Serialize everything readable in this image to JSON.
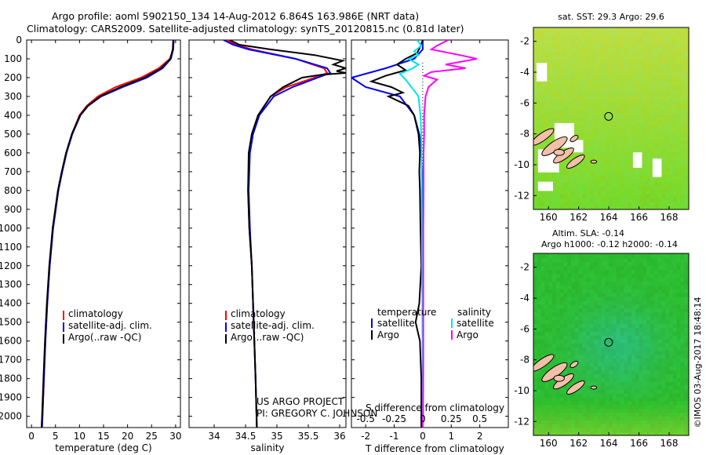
{
  "header": {
    "title_line1": "Argo profile: aoml 5902150_134 14-Aug-2012 6.864S 163.986E (NRT data)",
    "title_line2": "Climatology: CARS2009. Satellite-adjusted climatology: synTS_20120815.nc (0.81d later)"
  },
  "colors": {
    "climatology": "#ff0000",
    "satellite": "#0000ff",
    "argo": "#000000",
    "salinity_satellite": "#00e5ee",
    "salinity_argo": "#ff00ff"
  },
  "chart_data": [
    {
      "type": "line",
      "id": "temperature",
      "xlabel": "temperature (deg C)",
      "xlim": [
        -1,
        31
      ],
      "xticks": [
        0,
        5,
        10,
        15,
        20,
        25,
        30
      ],
      "ylim": [
        2060,
        0
      ],
      "yticks": [
        0,
        100,
        200,
        300,
        400,
        500,
        600,
        700,
        800,
        900,
        1000,
        1100,
        1200,
        1300,
        1400,
        1500,
        1600,
        1700,
        1800,
        1900,
        2000
      ],
      "legend": [
        "climatology",
        "satellite-adj. clim.",
        "Argo(..raw -QC)"
      ],
      "series": [
        {
          "name": "climatology",
          "depth": [
            0,
            50,
            100,
            150,
            200,
            250,
            300,
            350,
            400,
            500,
            600,
            700,
            800,
            1000,
            1200,
            1400,
            1600,
            1800,
            2000,
            2060
          ],
          "values": [
            29.6,
            29.5,
            28.8,
            26.5,
            22.8,
            17.5,
            13.8,
            11.5,
            10.0,
            8.4,
            7.3,
            6.4,
            5.6,
            4.5,
            3.8,
            3.3,
            2.9,
            2.6,
            2.3,
            2.2
          ]
        },
        {
          "name": "satellite-adj. clim.",
          "depth": [
            0,
            50,
            100,
            150,
            200,
            250,
            300,
            350,
            400,
            500,
            600,
            700,
            800,
            1000,
            1200,
            1400,
            1600,
            1800,
            2000,
            2060
          ],
          "values": [
            29.6,
            29.5,
            29.0,
            27.3,
            24.0,
            19.0,
            14.5,
            11.8,
            10.2,
            8.5,
            7.3,
            6.4,
            5.6,
            4.5,
            3.8,
            3.3,
            2.9,
            2.6,
            2.3,
            2.2
          ]
        },
        {
          "name": "Argo(..raw -QC)",
          "depth": [
            0,
            50,
            100,
            150,
            200,
            250,
            300,
            350,
            400,
            500,
            600,
            700,
            800,
            1000,
            1200,
            1400,
            1600,
            1800,
            2000,
            2060
          ],
          "values": [
            29.5,
            29.4,
            28.9,
            27.0,
            23.5,
            18.5,
            14.3,
            11.7,
            10.1,
            8.4,
            7.2,
            6.3,
            5.5,
            4.4,
            3.7,
            3.2,
            2.8,
            2.5,
            2.2,
            2.1
          ]
        }
      ]
    },
    {
      "type": "line",
      "id": "salinity",
      "xlabel": "salinity",
      "xlim": [
        33.6,
        36.1
      ],
      "xticks": [
        34,
        34.5,
        35,
        35.5,
        36
      ],
      "ylim": [
        2060,
        0
      ],
      "legend": [
        "climatology",
        "satellite-adj. clim.",
        "Argo(..raw -QC)"
      ],
      "series": [
        {
          "name": "climatology",
          "depth": [
            0,
            25,
            50,
            100,
            150,
            175,
            200,
            250,
            300,
            400,
            500,
            600,
            800,
            1000,
            1200,
            1500,
            1800,
            2060
          ],
          "values": [
            34.2,
            34.35,
            34.6,
            35.3,
            35.75,
            35.8,
            35.6,
            35.15,
            34.9,
            34.7,
            34.6,
            34.56,
            34.54,
            34.56,
            34.6,
            34.63,
            34.66,
            34.68
          ]
        },
        {
          "name": "satellite-adj. clim.",
          "depth": [
            0,
            25,
            50,
            100,
            150,
            175,
            200,
            250,
            300,
            400,
            500,
            600,
            800,
            1000,
            1200,
            1500,
            1800,
            2060
          ],
          "values": [
            34.15,
            34.3,
            34.55,
            35.3,
            35.8,
            35.85,
            35.65,
            35.25,
            34.95,
            34.72,
            34.62,
            34.57,
            34.55,
            34.57,
            34.6,
            34.63,
            34.66,
            34.68
          ]
        },
        {
          "name": "Argo(..raw -QC)",
          "depth": [
            0,
            25,
            50,
            80,
            110,
            130,
            150,
            165,
            175,
            185,
            200,
            250,
            300,
            400,
            500,
            600,
            800,
            1000,
            1200,
            1500,
            1800,
            2060
          ],
          "values": [
            34.25,
            34.4,
            34.9,
            35.6,
            36.05,
            35.9,
            36.1,
            35.95,
            36.1,
            35.7,
            35.4,
            35.1,
            34.9,
            34.7,
            34.6,
            34.55,
            34.54,
            34.56,
            34.6,
            34.63,
            34.66,
            34.68
          ]
        }
      ]
    },
    {
      "type": "line",
      "id": "difference",
      "xlabel_top": "S difference from climatology",
      "xlabel_bottom": "T difference from climatology",
      "xlim": [
        -2.5,
        3
      ],
      "xticks": [
        -2,
        -1,
        0,
        1,
        2
      ],
      "top_tick_labels": [
        "-0.5",
        "-0.25",
        "0",
        "0.25",
        "0.5"
      ],
      "top_tick_positions": [
        -2,
        -1,
        0,
        1,
        2
      ],
      "ylim": [
        2060,
        0
      ],
      "legend_left_title": "temperature",
      "legend_right_title": "salinity",
      "legend_labels": [
        "satellite",
        "Argo"
      ],
      "series": [
        {
          "name": "temperature satellite",
          "depth": [
            0,
            50,
            100,
            150,
            200,
            250,
            300,
            400,
            500,
            600,
            800,
            1000,
            1200,
            1400,
            1600,
            1800,
            2000,
            2060
          ],
          "values": [
            0,
            0,
            -0.3,
            -1.3,
            -2.5,
            -2.0,
            -0.8,
            -0.3,
            -0.12,
            -0.05,
            0,
            0,
            0,
            0,
            0,
            0,
            0,
            0
          ]
        },
        {
          "name": "temperature Argo",
          "depth": [
            0,
            40,
            70,
            100,
            130,
            160,
            190,
            220,
            250,
            280,
            300,
            350,
            400,
            500,
            600,
            700,
            800,
            1000,
            1200,
            1400,
            1500,
            1600,
            1800,
            2000,
            2060
          ],
          "values": [
            0,
            -0.1,
            -0.2,
            -0.6,
            -0.9,
            -0.6,
            -1.3,
            -1.8,
            -1.1,
            -0.7,
            -1.2,
            -0.5,
            -0.3,
            -0.15,
            -0.1,
            -0.12,
            -0.1,
            -0.08,
            -0.05,
            -0.12,
            -0.25,
            -0.1,
            -0.05,
            -0.05,
            -0.05
          ]
        },
        {
          "name": "salinity satellite",
          "depth": [
            0,
            30,
            60,
            80,
            100,
            130,
            150,
            180,
            210,
            250,
            300,
            400,
            500,
            700,
            1000,
            1300,
            1500,
            1700,
            2000,
            2060
          ],
          "values": [
            -0.2,
            -0.05,
            -0.3,
            -0.15,
            -0.5,
            -0.15,
            -0.35,
            -0.8,
            -0.6,
            -0.4,
            -0.15,
            -0.08,
            -0.05,
            -0.04,
            -0.03,
            -0.02,
            -0.01,
            0,
            0,
            0
          ]
        },
        {
          "name": "salinity Argo",
          "depth": [
            0,
            30,
            50,
            80,
            100,
            130,
            150,
            170,
            190,
            210,
            250,
            300,
            400,
            500,
            600,
            800,
            1000,
            1300,
            1500,
            1700,
            2000,
            2060
          ],
          "values": [
            0.9,
            0.5,
            0.3,
            1.3,
            1.9,
            0.8,
            1.5,
            0.3,
            0.05,
            0.5,
            0.2,
            0.1,
            0.05,
            0.05,
            0.03,
            0.03,
            0.02,
            0.02,
            0.02,
            0.02,
            0.01,
            0
          ]
        }
      ]
    },
    {
      "type": "heatmap",
      "id": "sst_map",
      "title": "sat. SST: 29.3  Argo: 29.6",
      "xlim": [
        159,
        169.3
      ],
      "ylim": [
        -12.9,
        -1.1
      ],
      "xticks": [
        160,
        162,
        164,
        166,
        168
      ],
      "yticks": [
        -2,
        -4,
        -6,
        -8,
        -10,
        -12
      ],
      "profile_position": [
        163.986,
        -6.864
      ]
    },
    {
      "type": "heatmap",
      "id": "sla_map",
      "title_line1": "Altim. SLA: -0.14",
      "title_line2": "Argo h1000: -0.12 h2000: -0.14",
      "xlim": [
        159,
        169.3
      ],
      "ylim": [
        -12.9,
        -1.1
      ],
      "xticks": [
        160,
        162,
        164,
        166,
        168
      ],
      "yticks": [
        -2,
        -4,
        -6,
        -8,
        -10,
        -12
      ],
      "profile_position": [
        163.986,
        -6.864
      ]
    }
  ],
  "credits": {
    "project": "US ARGO PROJECT",
    "pi": "PI: GREGORY C. JOHNSON"
  },
  "footer_stamp": "©IMOS 03-Aug-2017 18:48:14"
}
